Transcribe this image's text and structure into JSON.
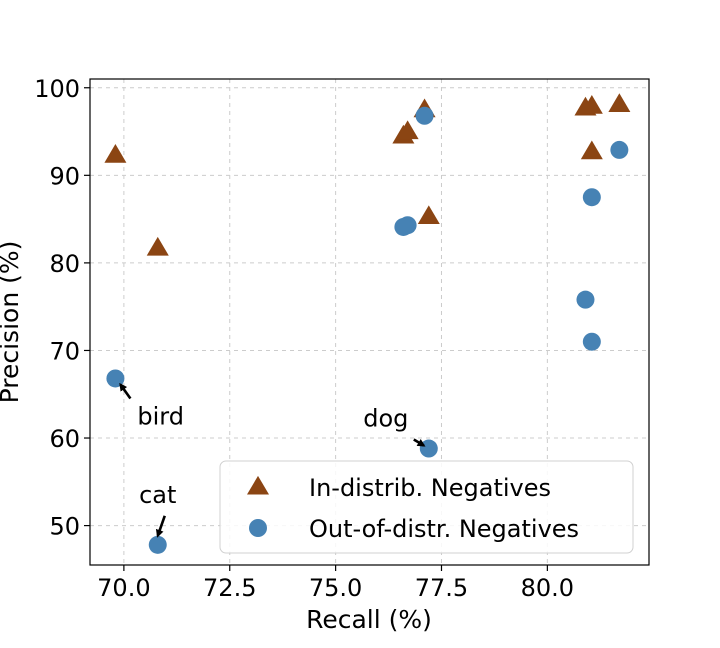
{
  "chart_data": {
    "type": "scatter",
    "xlabel": "Recall (%)",
    "ylabel": "Precision (%)",
    "xlim": [
      69.2,
      82.4
    ],
    "ylim": [
      45.5,
      101.0
    ],
    "xticks": [
      70.0,
      72.5,
      75.0,
      77.5,
      80.0
    ],
    "yticks": [
      50,
      60,
      70,
      80,
      90,
      100
    ],
    "xtick_labels": [
      "70.0",
      "72.5",
      "75.0",
      "77.5",
      "80.0"
    ],
    "ytick_labels": [
      "50",
      "60",
      "70",
      "80",
      "90",
      "100"
    ],
    "grid": true,
    "legend_position": "lower-right",
    "series": [
      {
        "name": "In-distrib. Negatives",
        "marker": "triangle",
        "color": "#8B4513",
        "points": [
          {
            "x": 69.8,
            "y": 92.3
          },
          {
            "x": 70.8,
            "y": 81.7
          },
          {
            "x": 76.6,
            "y": 94.5
          },
          {
            "x": 76.7,
            "y": 95.0
          },
          {
            "x": 77.1,
            "y": 97.5
          },
          {
            "x": 77.2,
            "y": 85.3
          },
          {
            "x": 80.9,
            "y": 97.7
          },
          {
            "x": 81.05,
            "y": 97.9
          },
          {
            "x": 81.05,
            "y": 92.7
          },
          {
            "x": 81.7,
            "y": 98.1
          }
        ]
      },
      {
        "name": "Out-of-distr. Negatives",
        "marker": "circle",
        "color": "#4682B4",
        "points": [
          {
            "x": 69.8,
            "y": 66.8
          },
          {
            "x": 70.8,
            "y": 47.8
          },
          {
            "x": 76.6,
            "y": 84.1
          },
          {
            "x": 76.7,
            "y": 84.3
          },
          {
            "x": 77.1,
            "y": 96.8
          },
          {
            "x": 77.2,
            "y": 58.8
          },
          {
            "x": 80.9,
            "y": 75.8
          },
          {
            "x": 81.05,
            "y": 71.0
          },
          {
            "x": 81.05,
            "y": 87.5
          },
          {
            "x": 81.7,
            "y": 92.9
          }
        ]
      }
    ],
    "annotations": [
      {
        "text": "bird",
        "x": 69.8,
        "y": 66.8,
        "text_anchor": "start"
      },
      {
        "text": "cat",
        "x": 70.8,
        "y": 47.8,
        "text_anchor": "middle"
      },
      {
        "text": "dog",
        "x": 77.2,
        "y": 58.8,
        "text_anchor": "middle"
      }
    ]
  }
}
